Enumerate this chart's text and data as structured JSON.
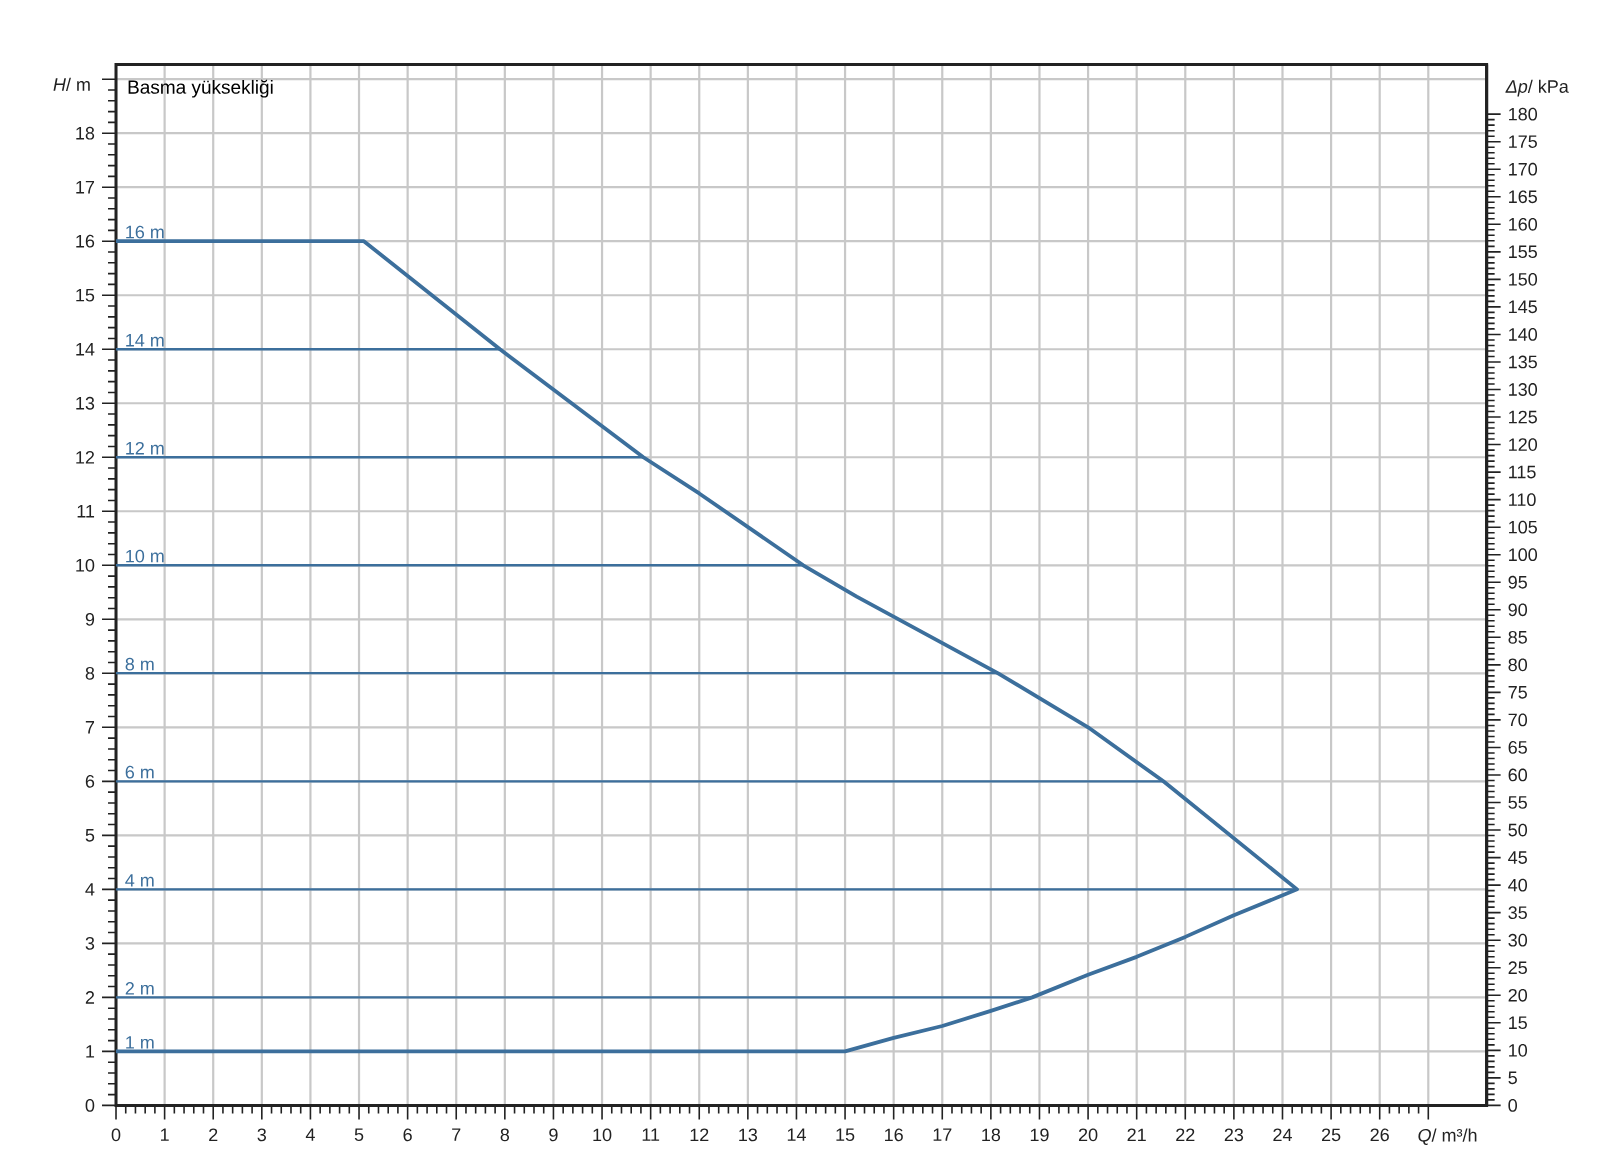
{
  "chart_data": {
    "type": "line",
    "title": "Basma yüksekliği",
    "xlabel": "*Q*/ m³/h",
    "ylabel": "*H*/ m",
    "y2label": "*Δp*/ kPa",
    "xlim": [
      0,
      28.2
    ],
    "xticks": [
      0,
      1,
      2,
      3,
      4,
      5,
      6,
      7,
      8,
      9,
      10,
      11,
      12,
      13,
      14,
      15,
      16,
      17,
      18,
      19,
      20,
      21,
      22,
      23,
      24,
      25,
      26,
      {
        "value": 27,
        "label": null
      }
    ],
    "ylim": [
      0,
      19.27
    ],
    "yticks": [
      0,
      1,
      2,
      3,
      4,
      5,
      6,
      7,
      8,
      9,
      10,
      11,
      12,
      13,
      14,
      15,
      16,
      17,
      18,
      {
        "value": 19,
        "label": null
      }
    ],
    "y2lim": [
      0,
      189
    ],
    "y2ticks": [
      0,
      5,
      10,
      15,
      20,
      25,
      30,
      35,
      40,
      45,
      50,
      55,
      60,
      65,
      70,
      75,
      80,
      85,
      90,
      95,
      100,
      105,
      110,
      115,
      120,
      125,
      130,
      135,
      140,
      145,
      150,
      155,
      160,
      165,
      170,
      175,
      180
    ],
    "grid": true,
    "series": [
      {
        "color": "#3c6f9c",
        "x": [
          0,
          5.1,
          7.9,
          10.85,
          12.0,
          14.14,
          15.24,
          18.15,
          20.0,
          21.55,
          24.3,
          23.0,
          22.0,
          21.0,
          20.0,
          18.85,
          18.0,
          17.0,
          16.0,
          15.0,
          0
        ],
        "values": [
          16,
          16,
          14,
          12,
          11.33,
          10,
          9.42,
          8,
          7.0,
          6,
          4,
          3.52,
          3.12,
          2.75,
          2.42,
          2,
          1.75,
          1.47,
          1.25,
          1,
          1
        ]
      },
      {
        "color": "#3c6f9c",
        "x": [
          0,
          7.9
        ],
        "values": [
          14,
          14
        ]
      },
      {
        "color": "#3c6f9c",
        "x": [
          0,
          10.85
        ],
        "values": [
          12,
          12
        ]
      },
      {
        "color": "#3c6f9c",
        "x": [
          0,
          14.14
        ],
        "values": [
          10,
          10
        ]
      },
      {
        "color": "#3c6f9c",
        "x": [
          0,
          18.15
        ],
        "values": [
          8,
          8
        ]
      },
      {
        "color": "#3c6f9c",
        "x": [
          0,
          21.55
        ],
        "values": [
          6,
          6
        ]
      },
      {
        "color": "#3c6f9c",
        "x": [
          0,
          24.3
        ],
        "values": [
          4,
          4
        ]
      },
      {
        "color": "#3c6f9c",
        "x": [
          0,
          18.85
        ],
        "values": [
          2,
          2
        ]
      }
    ],
    "annotations": [
      {
        "text": "16 m",
        "y": 16
      },
      {
        "text": "14 m",
        "y": 14
      },
      {
        "text": "12 m",
        "y": 12
      },
      {
        "text": "10 m",
        "y": 10
      },
      {
        "text": "8 m",
        "y": 8
      },
      {
        "text": "6 m",
        "y": 6
      },
      {
        "text": "4 m",
        "y": 4
      },
      {
        "text": "2 m",
        "y": 2
      },
      {
        "text": "1 m",
        "y": 1
      }
    ]
  }
}
